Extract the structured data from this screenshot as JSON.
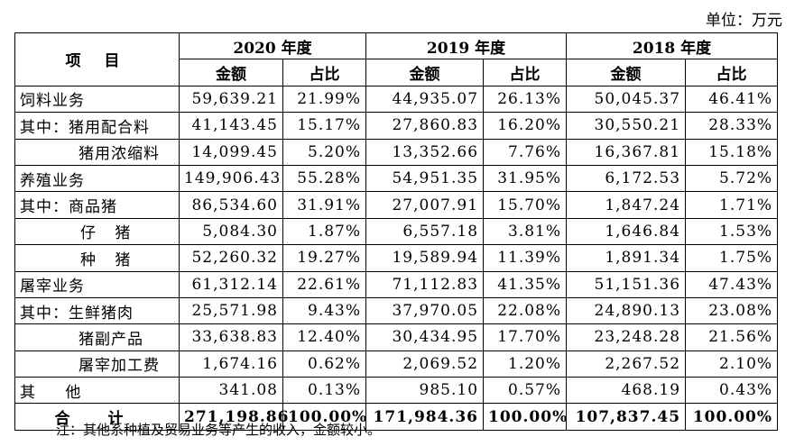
{
  "unit_label": "单位：万元",
  "header": {
    "item": "项 目",
    "years": [
      "2020 年度",
      "2019 年度",
      "2018 年度"
    ],
    "amount": "金额",
    "ratio": "占比"
  },
  "rows": [
    {
      "label": "饲料业务",
      "v": [
        "59,639.21",
        "21.99%",
        "44,935.07",
        "26.13%",
        "50,045.37",
        "46.41%"
      ]
    },
    {
      "label": "其中：猪用配合料",
      "v": [
        "41,143.45",
        "15.17%",
        "27,860.83",
        "16.20%",
        "30,550.21",
        "28.33%"
      ]
    },
    {
      "label": "猪用浓缩料",
      "v": [
        "14,099.45",
        "5.20%",
        "13,352.66",
        "7.76%",
        "16,367.81",
        "15.18%"
      ]
    },
    {
      "label": "养殖业务",
      "v": [
        "149,906.43",
        "55.28%",
        "54,951.35",
        "31.95%",
        "6,172.53",
        "5.72%"
      ]
    },
    {
      "label": "其中：商品猪",
      "v": [
        "86,534.60",
        "31.91%",
        "27,007.91",
        "15.70%",
        "1,847.24",
        "1.71%"
      ]
    },
    {
      "label": "仔 猪",
      "v": [
        "5,084.30",
        "1.87%",
        "6,557.18",
        "3.81%",
        "1,646.84",
        "1.53%"
      ]
    },
    {
      "label": "种 猪",
      "v": [
        "52,260.32",
        "19.27%",
        "19,589.94",
        "11.39%",
        "1,891.34",
        "1.75%"
      ]
    },
    {
      "label": "屠宰业务",
      "v": [
        "61,312.14",
        "22.61%",
        "71,112.83",
        "41.35%",
        "51,151.36",
        "47.43%"
      ]
    },
    {
      "label": "其中：生鲜猪肉",
      "v": [
        "25,571.98",
        "9.43%",
        "37,970.05",
        "22.08%",
        "24,890.13",
        "23.08%"
      ]
    },
    {
      "label": "猪副产品",
      "v": [
        "33,638.83",
        "12.40%",
        "30,434.95",
        "17.70%",
        "23,248.28",
        "21.56%"
      ]
    },
    {
      "label": "屠宰加工费",
      "v": [
        "1,674.16",
        "0.62%",
        "2,069.52",
        "1.20%",
        "2,267.52",
        "2.10%"
      ]
    },
    {
      "label": "其 他",
      "v": [
        "341.08",
        "0.13%",
        "985.10",
        "0.57%",
        "468.19",
        "0.43%"
      ]
    }
  ],
  "total": {
    "label": "合 计",
    "v": [
      "271,198.86",
      "100.00%",
      "171,984.36",
      "100.00%",
      "107,837.45",
      "100.00%"
    ]
  },
  "note": "注：其他系种植及贸易业务等产生的收入，金额较小。"
}
